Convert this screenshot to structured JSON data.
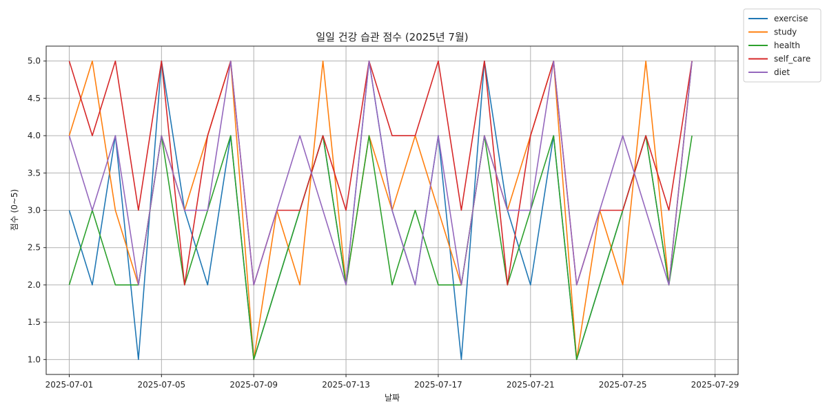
{
  "chart_data": {
    "type": "line",
    "title": "일일 건강 습관 점수 (2025년 7월)",
    "xlabel": "날짜",
    "ylabel": "점수 (0~5)",
    "x": [
      "2025-07-01",
      "2025-07-02",
      "2025-07-03",
      "2025-07-04",
      "2025-07-05",
      "2025-07-06",
      "2025-07-07",
      "2025-07-08",
      "2025-07-09",
      "2025-07-10",
      "2025-07-11",
      "2025-07-12",
      "2025-07-13",
      "2025-07-14",
      "2025-07-15",
      "2025-07-16",
      "2025-07-17",
      "2025-07-18",
      "2025-07-19",
      "2025-07-20",
      "2025-07-21",
      "2025-07-22",
      "2025-07-23",
      "2025-07-24",
      "2025-07-25",
      "2025-07-26",
      "2025-07-27",
      "2025-07-28"
    ],
    "xlim": [
      "2025-06-30",
      "2025-07-30"
    ],
    "ylim": [
      0.8,
      5.2
    ],
    "x_ticks": [
      "2025-07-01",
      "2025-07-05",
      "2025-07-09",
      "2025-07-13",
      "2025-07-17",
      "2025-07-21",
      "2025-07-25",
      "2025-07-29"
    ],
    "y_ticks": [
      "1.0",
      "1.5",
      "2.0",
      "2.5",
      "3.0",
      "3.5",
      "4.0",
      "4.5",
      "5.0"
    ],
    "grid": true,
    "legend_position": "outside-top-right",
    "series": [
      {
        "name": "exercise",
        "color": "#1f77b4",
        "values": [
          3,
          2,
          4,
          1,
          5,
          3,
          2,
          4,
          1,
          2,
          3,
          4,
          2,
          5,
          3,
          2,
          4,
          1,
          5,
          3,
          2,
          4,
          1,
          2,
          3,
          4,
          2,
          5
        ]
      },
      {
        "name": "study",
        "color": "#ff7f0e",
        "values": [
          4,
          5,
          3,
          2,
          4,
          3,
          4,
          5,
          1,
          3,
          2,
          5,
          2,
          4,
          3,
          4,
          3,
          2,
          4,
          3,
          4,
          5,
          1,
          3,
          2,
          5,
          2,
          5
        ]
      },
      {
        "name": "health",
        "color": "#2ca02c",
        "values": [
          2,
          3,
          2,
          2,
          4,
          2,
          3,
          4,
          1,
          2,
          3,
          4,
          2,
          4,
          2,
          3,
          2,
          2,
          4,
          2,
          3,
          4,
          1,
          2,
          3,
          4,
          2,
          4
        ]
      },
      {
        "name": "self_care",
        "color": "#d62728",
        "values": [
          5,
          4,
          5,
          3,
          5,
          2,
          4,
          5,
          2,
          3,
          3,
          4,
          3,
          5,
          4,
          4,
          5,
          3,
          5,
          2,
          4,
          5,
          2,
          3,
          3,
          4,
          3,
          5
        ]
      },
      {
        "name": "diet",
        "color": "#9467bd",
        "values": [
          4,
          3,
          4,
          2,
          4,
          3,
          3,
          5,
          2,
          3,
          4,
          3,
          2,
          5,
          3,
          2,
          4,
          2,
          4,
          3,
          3,
          5,
          2,
          3,
          4,
          3,
          2,
          5
        ]
      }
    ]
  }
}
